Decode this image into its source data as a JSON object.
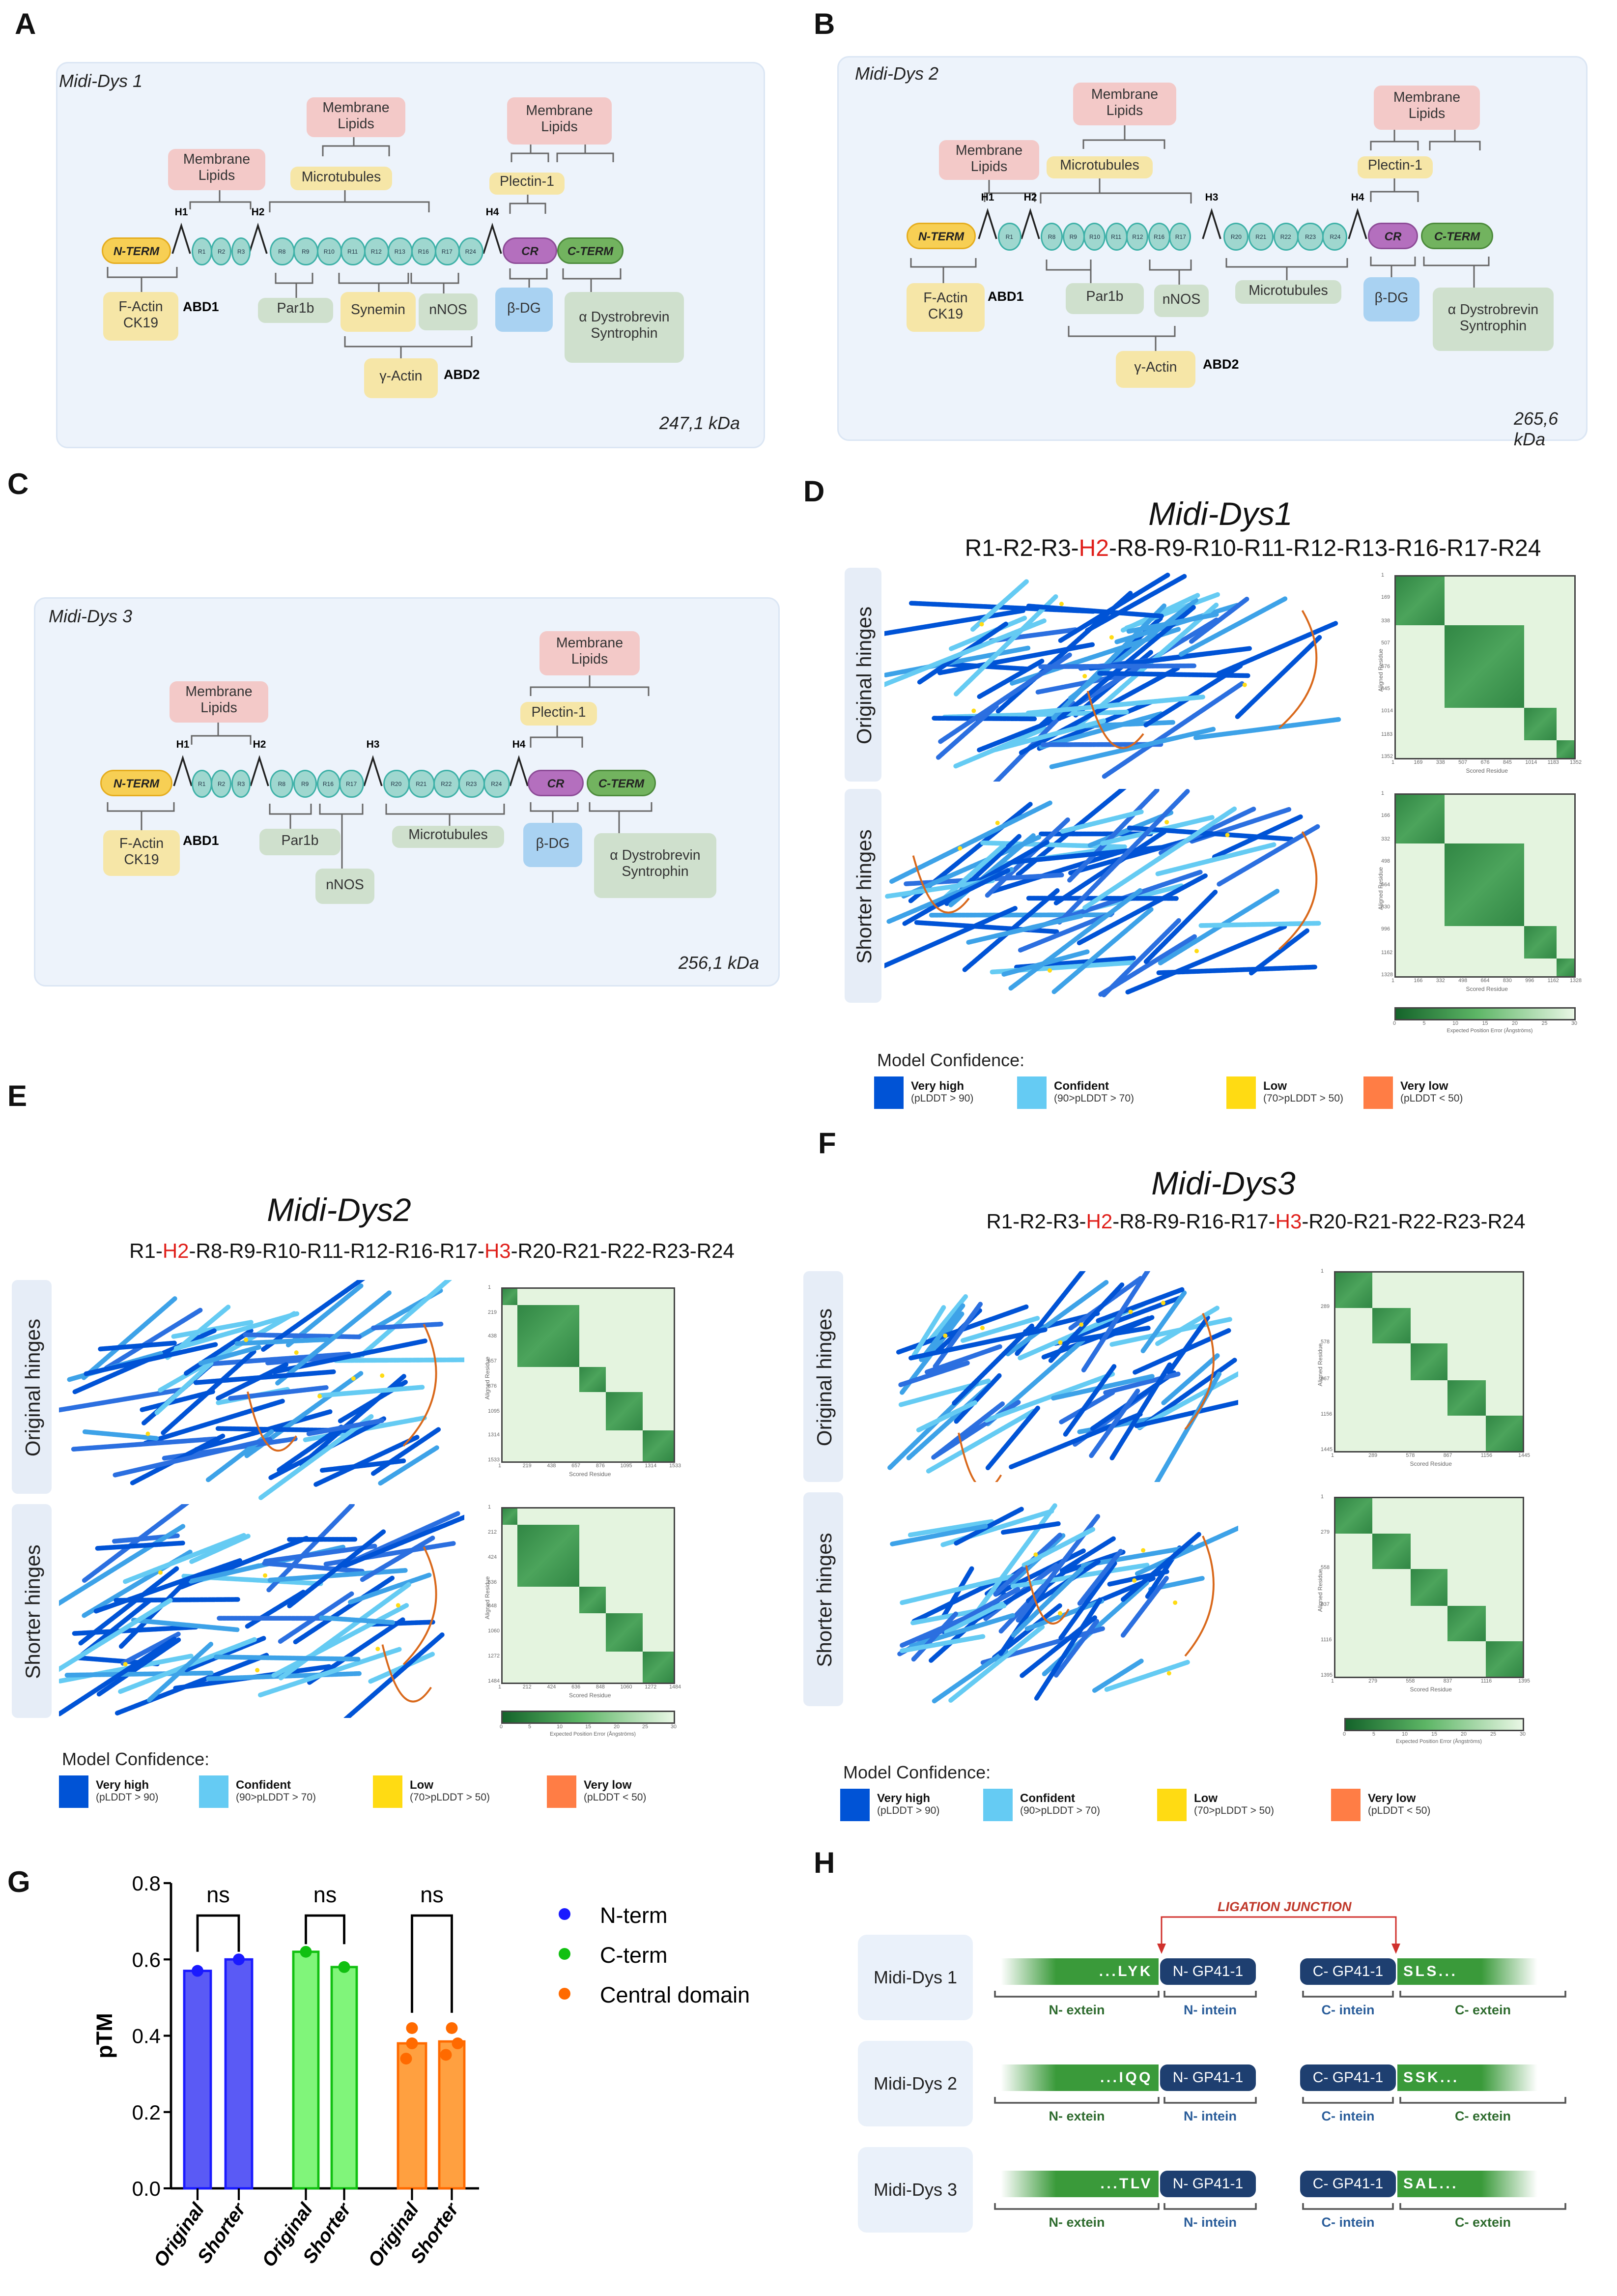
{
  "panel_letters": {
    "A": "A",
    "B": "B",
    "C": "C",
    "D": "D",
    "E": "E",
    "F": "F",
    "G": "G",
    "H": "H"
  },
  "diagrams": {
    "A": {
      "title": "Midi-Dys 1",
      "mass": "247,1 kDa",
      "nterm": "N-TERM",
      "cr": "CR",
      "cterm": "C-TERM",
      "hinges": [
        "H1",
        "H2",
        "H4"
      ],
      "repeats": [
        [
          "R1",
          "R2",
          "R3"
        ],
        [
          "R8",
          "R9",
          "R10",
          "R11",
          "R12",
          "R13",
          "R16",
          "R17",
          "R24"
        ]
      ],
      "partners": [
        {
          "text": "Membrane Lipids",
          "type": "lipid"
        },
        {
          "text": "Membrane Lipids",
          "type": "lipid"
        },
        {
          "text": "Microtubules",
          "type": "yel"
        },
        {
          "text": "Membrane Lipids",
          "type": "lipid"
        },
        {
          "text": "Plectin-1",
          "type": "yel"
        },
        {
          "text": "F-Actin CK19",
          "type": "yel"
        },
        {
          "text": "Par1b",
          "type": "grn"
        },
        {
          "text": "Synemin",
          "type": "yel"
        },
        {
          "text": "nNOS",
          "type": "grn"
        },
        {
          "text": "β-DG",
          "type": "blu"
        },
        {
          "text": "α Dystrobrevin Syntrophin",
          "type": "grn"
        },
        {
          "text": "γ-Actin",
          "type": "yel"
        }
      ],
      "abd": [
        "ABD1",
        "ABD2"
      ]
    },
    "B": {
      "title": "Midi-Dys 2",
      "mass": "265,6 kDa",
      "nterm": "N-TERM",
      "cr": "CR",
      "cterm": "C-TERM",
      "hinges": [
        "H1",
        "H2",
        "H3",
        "H4"
      ],
      "repeats": [
        [
          "R1"
        ],
        [
          "R8",
          "R9",
          "R10",
          "R11",
          "R12",
          "R16",
          "R17"
        ],
        [
          "R20",
          "R21",
          "R22",
          "R23",
          "R24"
        ]
      ],
      "partners": [
        {
          "text": "Membrane Lipids",
          "type": "lipid"
        },
        {
          "text": "Membrane Lipids",
          "type": "lipid"
        },
        {
          "text": "Microtubules",
          "type": "yel"
        },
        {
          "text": "Membrane Lipids",
          "type": "lipid"
        },
        {
          "text": "Plectin-1",
          "type": "yel"
        },
        {
          "text": "F-Actin CK19",
          "type": "yel"
        },
        {
          "text": "Par1b",
          "type": "grn"
        },
        {
          "text": "nNOS",
          "type": "grn"
        },
        {
          "text": "Microtubules",
          "type": "grn"
        },
        {
          "text": "β-DG",
          "type": "blu"
        },
        {
          "text": "α Dystrobrevin Syntrophin",
          "type": "grn"
        },
        {
          "text": "γ-Actin",
          "type": "yel"
        }
      ],
      "abd": [
        "ABD1",
        "ABD2"
      ]
    },
    "C": {
      "title": "Midi-Dys 3",
      "mass": "256,1 kDa",
      "nterm": "N-TERM",
      "cr": "CR",
      "cterm": "C-TERM",
      "hinges": [
        "H1",
        "H2",
        "H3",
        "H4"
      ],
      "repeats": [
        [
          "R1",
          "R2",
          "R3"
        ],
        [
          "R8",
          "R9",
          "R16",
          "R17"
        ],
        [
          "R20",
          "R21",
          "R22",
          "R23",
          "R24"
        ]
      ],
      "partners": [
        {
          "text": "Membrane Lipids",
          "type": "lipid"
        },
        {
          "text": "Membrane Lipids",
          "type": "lipid"
        },
        {
          "text": "Plectin-1",
          "type": "yel"
        },
        {
          "text": "F-Actin CK19",
          "type": "yel"
        },
        {
          "text": "Par1b",
          "type": "grn"
        },
        {
          "text": "nNOS",
          "type": "grn"
        },
        {
          "text": "Microtubules",
          "type": "grn"
        },
        {
          "text": "β-DG",
          "type": "blu"
        },
        {
          "text": "α Dystrobrevin Syntrophin",
          "type": "grn"
        }
      ],
      "abd": [
        "ABD1"
      ]
    }
  },
  "models": {
    "D": {
      "title": "Midi-Dys1",
      "sequence": [
        {
          "t": "R1-R2-R3-"
        },
        {
          "t": "H2",
          "hl": true
        },
        {
          "t": "-R8-R9-R10-R11-R12-R13-R16-R17-R24"
        }
      ],
      "rows": [
        "Original hinges",
        "Shorter hinges"
      ],
      "heatmaps": [
        {
          "ticks": [
            "1",
            "169",
            "338",
            "507",
            "676",
            "845",
            "1014",
            "1183",
            "1352"
          ]
        },
        {
          "ticks": [
            "1",
            "166",
            "332",
            "498",
            "664",
            "830",
            "996",
            "1162",
            "1328"
          ]
        }
      ]
    },
    "E": {
      "title": "Midi-Dys2",
      "sequence": [
        {
          "t": "R1-"
        },
        {
          "t": "H2",
          "hl": true
        },
        {
          "t": "-R8-R9-R10-R11-R12-R16-R17-"
        },
        {
          "t": "H3",
          "hl": true
        },
        {
          "t": "-R20-R21-R22-R23-R24"
        }
      ],
      "rows": [
        "Original hinges",
        "Shorter hinges"
      ],
      "heatmaps": [
        {
          "ticks": [
            "1",
            "219",
            "438",
            "657",
            "876",
            "1095",
            "1314",
            "1533"
          ]
        },
        {
          "ticks": [
            "1",
            "212",
            "424",
            "636",
            "848",
            "1060",
            "1272",
            "1484"
          ]
        }
      ]
    },
    "F": {
      "title": "Midi-Dys3",
      "sequence": [
        {
          "t": "R1-R2-R3-"
        },
        {
          "t": "H2",
          "hl": true
        },
        {
          "t": "-R8-R9-R16-R17-"
        },
        {
          "t": "H3",
          "hl": true
        },
        {
          "t": "-R20-R21-R22-R23-R24"
        }
      ],
      "rows": [
        "Original hinges",
        "Shorter hinges"
      ],
      "heatmaps": [
        {
          "ticks": [
            "1",
            "289",
            "578",
            "867",
            "1156",
            "1445"
          ]
        },
        {
          "ticks": [
            "1",
            "279",
            "558",
            "837",
            "1116",
            "1395"
          ]
        }
      ]
    }
  },
  "heatmap_axes": {
    "x_label": "Scored Residue",
    "y_label": "Aligned Residue",
    "colorbar_ticks": [
      "0",
      "5",
      "10",
      "15",
      "20",
      "25",
      "30"
    ],
    "colorbar_label": "Expected Position Error (Ångströms)"
  },
  "confidence_legend": {
    "title": "Model Confidence:",
    "items": [
      {
        "label": "Very high",
        "range": "(pLDDT > 90)",
        "color": "#0053d6"
      },
      {
        "label": "Confident",
        "range": "(90>pLDDT > 70)",
        "color": "#65cbf3"
      },
      {
        "label": "Low",
        "range": "(70>pLDDT > 50)",
        "color": "#ffdb13"
      },
      {
        "label": "Very low",
        "range": "(pLDDT < 50)",
        "color": "#ff7d45"
      }
    ]
  },
  "chart_data": {
    "type": "bar",
    "title": "",
    "xlabel": "",
    "ylabel": "pTM",
    "ylim": [
      0,
      0.8
    ],
    "yticks": [
      "0.0",
      "0.2",
      "0.4",
      "0.6",
      "0.8"
    ],
    "categories": [
      "Original",
      "Shorter",
      "Original",
      "Shorter",
      "Original",
      "Shorter"
    ],
    "groups": [
      {
        "name": "N-term",
        "color": "#1a1aff",
        "fill": "#5a5af5",
        "values": [
          0.57,
          0.6
        ],
        "points": [
          [
            0.57
          ],
          [
            0.6
          ]
        ],
        "significance": "ns"
      },
      {
        "name": "C-term",
        "color": "#11c011",
        "fill": "#80f57a",
        "values": [
          0.62,
          0.58
        ],
        "points": [
          [
            0.62
          ],
          [
            0.58
          ]
        ],
        "significance": "ns"
      },
      {
        "name": "Central domain",
        "color": "#ff6a00",
        "fill": "#ffa040",
        "values": [
          0.38,
          0.385
        ],
        "points": [
          [
            0.42,
            0.38,
            0.34
          ],
          [
            0.42,
            0.38,
            0.35
          ]
        ],
        "significance": "ns"
      }
    ],
    "legend_position": "right"
  },
  "ligation": {
    "junction_label": "LIGATION JUNCTION",
    "rows": [
      {
        "name": "Midi-Dys 1",
        "n_seq": "...LYK",
        "c_seq": "SLS..."
      },
      {
        "name": "Midi-Dys 2",
        "n_seq": "...IQQ",
        "c_seq": "SSK..."
      },
      {
        "name": "Midi-Dys 3",
        "n_seq": "...TLV",
        "c_seq": "SAL..."
      }
    ],
    "n_intein": "N- GP41-1",
    "c_intein": "C- GP41-1",
    "labels": {
      "n_extein": "N- extein",
      "n_intein": "N- intein",
      "c_intein": "C- intein",
      "c_extein": "C- extein"
    }
  }
}
